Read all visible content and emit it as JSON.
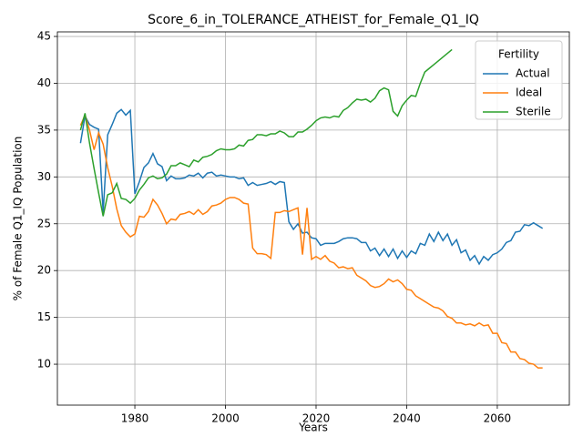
{
  "chart_data": {
    "type": "line",
    "title": "Score_6_in_TOLERANCE_ATHEIST_for_Female_Q1_IQ",
    "x_label": "Years",
    "y_label": "% of Female Q1_IQ Population",
    "x": [
      1968,
      1969,
      1970,
      1971,
      1972,
      1973,
      1974,
      1975,
      1976,
      1977,
      1978,
      1979,
      1980,
      1981,
      1982,
      1983,
      1984,
      1985,
      1986,
      1987,
      1988,
      1989,
      1990,
      1991,
      1992,
      1993,
      1994,
      1995,
      1996,
      1997,
      1998,
      1999,
      2000,
      2001,
      2002,
      2003,
      2004,
      2005,
      2006,
      2007,
      2008,
      2009,
      2010,
      2011,
      2012,
      2013,
      2014,
      2015,
      2016,
      2017,
      2018,
      2019,
      2020,
      2021,
      2022,
      2023,
      2024,
      2025,
      2026,
      2027,
      2028,
      2029,
      2030,
      2031,
      2032,
      2033,
      2034,
      2035,
      2036,
      2037,
      2038,
      2039,
      2040,
      2041,
      2042,
      2043,
      2044,
      2045,
      2046,
      2047,
      2048,
      2049,
      2050,
      2051,
      2052,
      2053,
      2054,
      2055,
      2056,
      2057,
      2058,
      2059,
      2060,
      2061,
      2062,
      2063,
      2064,
      2065,
      2066,
      2067,
      2068,
      2069,
      2070
    ],
    "series": [
      {
        "name": "Actual",
        "color": "#1f77b4",
        "values": [
          33.6,
          36.5,
          35.6,
          35.3,
          35.1,
          26.2,
          34.5,
          35.6,
          36.8,
          37.2,
          36.6,
          37.1,
          28.2,
          29.5,
          31.0,
          31.5,
          32.5,
          31.4,
          31.1,
          29.6,
          30.1,
          29.8,
          29.8,
          29.9,
          30.2,
          30.1,
          30.4,
          29.9,
          30.4,
          30.5,
          30.1,
          30.2,
          30.1,
          30.0,
          30.0,
          29.8,
          29.9,
          29.1,
          29.4,
          29.1,
          29.2,
          29.3,
          29.5,
          29.2,
          29.5,
          29.4,
          25.2,
          24.4,
          25.0,
          24.0,
          24.1,
          23.5,
          23.4,
          22.7,
          22.9,
          22.9,
          22.9,
          23.1,
          23.4,
          23.5,
          23.5,
          23.4,
          23.0,
          23.0,
          22.1,
          22.4,
          21.6,
          22.3,
          21.5,
          22.3,
          21.3,
          22.1,
          21.4,
          22.1,
          21.8,
          22.9,
          22.7,
          23.9,
          23.1,
          24.1,
          23.2,
          23.9,
          22.7,
          23.3,
          21.9,
          22.2,
          21.1,
          21.6,
          20.7,
          21.5,
          21.1,
          21.7,
          21.9,
          22.3,
          23.0,
          23.2,
          24.1,
          24.2,
          24.9,
          24.8,
          25.1,
          24.8,
          24.5
        ]
      },
      {
        "name": "Ideal",
        "color": "#ff7f0e",
        "values": [
          35.5,
          36.6,
          35.0,
          32.9,
          34.7,
          33.5,
          31.0,
          29.0,
          26.6,
          24.8,
          24.1,
          23.6,
          23.9,
          25.8,
          25.7,
          26.3,
          27.6,
          27.0,
          26.1,
          25.0,
          25.5,
          25.4,
          26.0,
          26.1,
          26.3,
          26.0,
          26.5,
          26.0,
          26.3,
          26.9,
          27.0,
          27.2,
          27.6,
          27.8,
          27.8,
          27.6,
          27.2,
          27.1,
          22.4,
          21.8,
          21.8,
          21.7,
          21.3,
          26.2,
          26.2,
          26.4,
          26.3,
          26.5,
          26.7,
          21.7,
          26.7,
          21.2,
          21.5,
          21.2,
          21.6,
          21.0,
          20.8,
          20.3,
          20.4,
          20.2,
          20.3,
          19.5,
          19.2,
          18.9,
          18.4,
          18.2,
          18.3,
          18.6,
          19.1,
          18.8,
          19.0,
          18.6,
          18.0,
          17.9,
          17.3,
          17.0,
          16.7,
          16.4,
          16.1,
          16.0,
          15.7,
          15.1,
          14.9,
          14.4,
          14.4,
          14.2,
          14.3,
          14.1,
          14.4,
          14.1,
          14.2,
          13.3,
          13.3,
          12.3,
          12.2,
          11.3,
          11.3,
          10.6,
          10.5,
          10.1,
          10.0,
          9.6,
          9.6
        ]
      },
      {
        "name": "Sterile",
        "color": "#2ca02c",
        "values": [
          35.0,
          36.8,
          33.6,
          30.9,
          28.3,
          25.8,
          28.1,
          28.3,
          29.3,
          27.7,
          27.6,
          27.2,
          27.7,
          28.6,
          29.2,
          29.9,
          30.1,
          29.8,
          29.9,
          30.3,
          31.2,
          31.2,
          31.5,
          31.3,
          31.1,
          31.8,
          31.6,
          32.1,
          32.2,
          32.4,
          32.8,
          33.0,
          32.9,
          32.9,
          33.0,
          33.4,
          33.3,
          33.9,
          34.0,
          34.5,
          34.5,
          34.4,
          34.6,
          34.6,
          34.9,
          34.7,
          34.3,
          34.3,
          34.8,
          34.8,
          35.1,
          35.5,
          36.0,
          36.3,
          36.4,
          36.3,
          36.5,
          36.4,
          37.1,
          37.4,
          37.9,
          38.3,
          38.2,
          38.3,
          38.0,
          38.4,
          39.2,
          39.5,
          39.3,
          37.0,
          36.5,
          37.6,
          38.2,
          38.7,
          38.6,
          40.0,
          41.2,
          41.6,
          42.0,
          42.4,
          42.8,
          43.2,
          43.6,
          null,
          null,
          null,
          null,
          null,
          null,
          null,
          null,
          null,
          null,
          null,
          null,
          null,
          null,
          null,
          null,
          null,
          null,
          null,
          null
        ]
      }
    ],
    "xlim": [
      1962.9,
      2075.9
    ],
    "ylim": [
      5.63,
      45.49
    ],
    "xticks": [
      1980,
      2000,
      2020,
      2040,
      2060
    ],
    "yticks": [
      10,
      15,
      20,
      25,
      30,
      35,
      40,
      45
    ],
    "grid": true,
    "legend_title": "Fertility",
    "legend_corner": "upper right"
  }
}
